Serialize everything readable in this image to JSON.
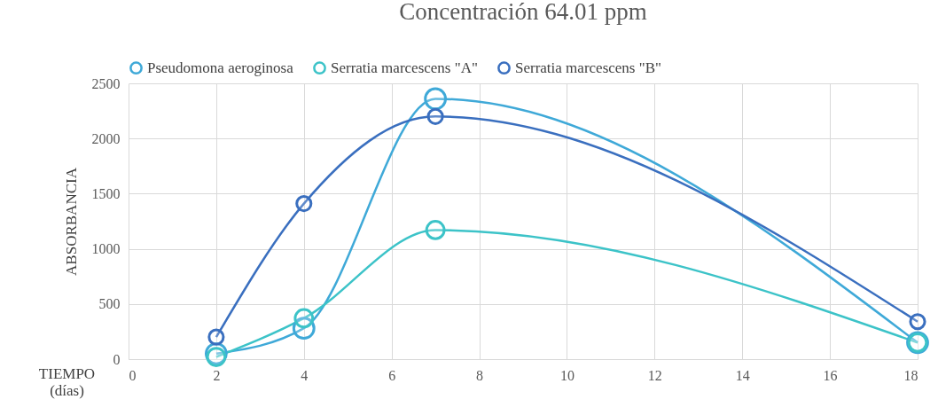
{
  "chart_data": {
    "type": "line",
    "title": "Concentración 64.01 ppm",
    "xlabel": "TIEMPO (días)",
    "ylabel": "ABSORBANCIA",
    "x": [
      2,
      4,
      7,
      18
    ],
    "series": [
      {
        "name": "Pseudomona aeroginosa",
        "color": "#3fa9d8",
        "values": [
          50,
          280,
          2360,
          150
        ]
      },
      {
        "name": "Serratia marcescens \"A\"",
        "color": "#3cc3c8",
        "values": [
          20,
          370,
          1170,
          150
        ]
      },
      {
        "name": "Serratia marcescens \"B\"",
        "color": "#3a6fbf",
        "values": [
          200,
          1410,
          2200,
          340
        ]
      }
    ],
    "xlim": [
      0,
      18
    ],
    "xticks": [
      0,
      2,
      4,
      6,
      8,
      10,
      12,
      14,
      16,
      18
    ],
    "ylim": [
      0,
      2500
    ],
    "yticks": [
      0,
      500,
      1000,
      1500,
      2000,
      2500
    ],
    "grid": true,
    "legend": "top",
    "marker": "circle",
    "line_style": "solid"
  }
}
